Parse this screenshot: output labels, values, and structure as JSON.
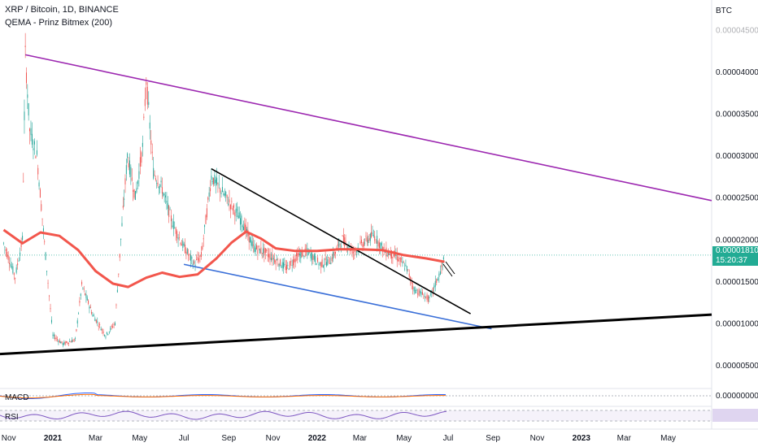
{
  "chart_data": {
    "type": "line",
    "title": "XRP / Bitcoin, 1D, BINANCE",
    "indicator": "QEMA - Prinz Bitmex (200)",
    "currency": "BTC",
    "y_ticks": [
      "0.00004500",
      "0.00004000",
      "0.00003500",
      "0.00003000",
      "0.00002500",
      "0.00002000",
      "0.00001500",
      "0.00001000",
      "0.00000500"
    ],
    "y_tick_values": [
      4.5e-05,
      4e-05,
      3.5e-05,
      3e-05,
      2.5e-05,
      2e-05,
      1.5e-05,
      1e-05,
      5e-06
    ],
    "x_ticks": [
      "Nov",
      "2021",
      "Mar",
      "May",
      "Jul",
      "Sep",
      "Nov",
      "2022",
      "Mar",
      "May",
      "Jul",
      "Sep",
      "Nov",
      "2023",
      "Mar",
      "May"
    ],
    "current_price": "0.00001810",
    "countdown": "15:20:37",
    "price_series": [
      [
        "2020-10-25",
        1.95e-05
      ],
      [
        "2020-11-10",
        1.55e-05
      ],
      [
        "2020-11-20",
        2e-05
      ],
      [
        "2020-11-24",
        4.2e-05
      ],
      [
        "2020-11-30",
        3.3e-05
      ],
      [
        "2020-12-10",
        3e-05
      ],
      [
        "2020-12-22",
        1.8e-05
      ],
      [
        "2021-01-01",
        8.5e-06
      ],
      [
        "2021-01-15",
        7.5e-06
      ],
      [
        "2021-02-01",
        8e-06
      ],
      [
        "2021-02-10",
        1.45e-05
      ],
      [
        "2021-02-25",
        1.1e-05
      ],
      [
        "2021-03-15",
        8.5e-06
      ],
      [
        "2021-03-28",
        1e-05
      ],
      [
        "2021-04-05",
        2e-05
      ],
      [
        "2021-04-14",
        3e-05
      ],
      [
        "2021-04-25",
        2.5e-05
      ],
      [
        "2021-05-05",
        3.1e-05
      ],
      [
        "2021-05-10",
        3.9e-05
      ],
      [
        "2021-05-20",
        2.8e-05
      ],
      [
        "2021-06-01",
        2.6e-05
      ],
      [
        "2021-06-15",
        2.2e-05
      ],
      [
        "2021-06-28",
        1.95e-05
      ],
      [
        "2021-07-15",
        1.7e-05
      ],
      [
        "2021-07-25",
        1.8e-05
      ],
      [
        "2021-08-08",
        2.75e-05
      ],
      [
        "2021-08-20",
        2.6e-05
      ],
      [
        "2021-09-05",
        2.4e-05
      ],
      [
        "2021-09-20",
        2.2e-05
      ],
      [
        "2021-10-05",
        1.9e-05
      ],
      [
        "2021-10-20",
        1.85e-05
      ],
      [
        "2021-11-05",
        1.75e-05
      ],
      [
        "2021-11-20",
        1.65e-05
      ],
      [
        "2021-12-05",
        1.8e-05
      ],
      [
        "2021-12-20",
        1.85e-05
      ],
      [
        "2022-01-05",
        1.7e-05
      ],
      [
        "2022-01-20",
        1.75e-05
      ],
      [
        "2022-02-05",
        2e-05
      ],
      [
        "2022-02-20",
        1.85e-05
      ],
      [
        "2022-03-05",
        1.95e-05
      ],
      [
        "2022-03-20",
        2.05e-05
      ],
      [
        "2022-04-05",
        1.85e-05
      ],
      [
        "2022-04-20",
        1.8e-05
      ],
      [
        "2022-05-05",
        1.65e-05
      ],
      [
        "2022-05-15",
        1.4e-05
      ],
      [
        "2022-05-25",
        1.35e-05
      ],
      [
        "2022-06-05",
        1.28e-05
      ],
      [
        "2022-06-15",
        1.5e-05
      ],
      [
        "2022-06-22",
        1.65e-05
      ],
      [
        "2022-06-26",
        1.81e-05
      ]
    ],
    "ema_series": [
      [
        "2020-10-25",
        2.11e-05
      ],
      [
        "2020-11-20",
        1.95e-05
      ],
      [
        "2020-12-15",
        2.08e-05
      ],
      [
        "2021-01-10",
        2.04e-05
      ],
      [
        "2021-02-05",
        1.87e-05
      ],
      [
        "2021-03-01",
        1.62e-05
      ],
      [
        "2021-03-25",
        1.47e-05
      ],
      [
        "2021-04-15",
        1.43e-05
      ],
      [
        "2021-05-10",
        1.54e-05
      ],
      [
        "2021-06-01",
        1.6e-05
      ],
      [
        "2021-06-25",
        1.55e-05
      ],
      [
        "2021-07-20",
        1.58e-05
      ],
      [
        "2021-08-15",
        1.77e-05
      ],
      [
        "2021-09-05",
        1.96e-05
      ],
      [
        "2021-09-25",
        2.09e-05
      ],
      [
        "2021-10-15",
        2.01e-05
      ],
      [
        "2021-11-05",
        1.89e-05
      ],
      [
        "2021-12-01",
        1.86e-05
      ],
      [
        "2022-01-01",
        1.86e-05
      ],
      [
        "2022-02-01",
        1.88e-05
      ],
      [
        "2022-03-01",
        1.88e-05
      ],
      [
        "2022-04-01",
        1.87e-05
      ],
      [
        "2022-05-01",
        1.81e-05
      ],
      [
        "2022-06-01",
        1.77e-05
      ],
      [
        "2022-06-26",
        1.73e-05
      ]
    ],
    "trendlines": [
      {
        "color": "#9c27b0",
        "points": [
          [
            "2020-11-24",
            4.2e-05
          ],
          [
            "2023-06-30",
            2.46e-05
          ]
        ]
      },
      {
        "color": "#000000",
        "points": [
          [
            "2021-08-08",
            2.84e-05
          ],
          [
            "2022-08-01",
            1.11e-05
          ]
        ]
      },
      {
        "color": "#3a6fd8",
        "points": [
          [
            "2021-07-01",
            1.7e-05
          ],
          [
            "2022-08-30",
            9.3e-06
          ]
        ]
      },
      {
        "color": "#000000",
        "width": 3,
        "points": [
          [
            "2020-10-20",
            6.3e-06
          ],
          [
            "2023-06-30",
            1.1e-05
          ]
        ]
      }
    ],
    "ylim": [
      3.5e-06,
      4.75e-05
    ],
    "xlim": [
      "2020-10-20",
      "2023-06-30"
    ],
    "grid": true,
    "legend": "top-left"
  },
  "panels": {
    "macd_label": "MACD",
    "rsi_label": "RSI",
    "macd_value": "0.00000000"
  },
  "colors": {
    "ema": "#f2564c",
    "candle_up": "#26a69a",
    "candle_down": "#ef5350",
    "price_tag": "#22ab94",
    "macd_line": "#2962ff",
    "signal_line": "#ff6d00",
    "rsi_line": "#7e57c2"
  }
}
